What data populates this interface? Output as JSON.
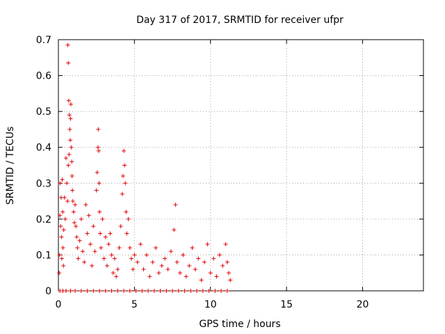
{
  "chart_data": {
    "type": "scatter",
    "title": "Day 317 of 2017, SRMTID for receiver ufpr",
    "xlabel": "GPS time / hours",
    "ylabel": "SRMTID / TECUs",
    "xlim": [
      0,
      24
    ],
    "ylim": [
      0,
      0.7
    ],
    "xticks": [
      0,
      5,
      10,
      15,
      20
    ],
    "yticks": [
      0,
      0.1,
      0.2,
      0.3,
      0.4,
      0.5,
      0.6,
      0.7
    ],
    "grid": true,
    "legend": "none",
    "marker": "plus",
    "color": "#e00000",
    "series": [
      {
        "name": "SRMTID",
        "x": [
          0.05,
          0.08,
          0.1,
          0.12,
          0.15,
          0.18,
          0.2,
          0.22,
          0.25,
          0.28,
          0.3,
          0.33,
          0.35,
          0.4,
          0.45,
          0.5,
          0.55,
          0.6,
          0.65,
          0.7,
          0.62,
          0.65,
          0.68,
          0.72,
          0.75,
          0.78,
          0.8,
          0.82,
          0.85,
          0.88,
          0.9,
          0.92,
          0.95,
          1.0,
          1.05,
          1.1,
          1.15,
          1.2,
          1.25,
          1.3,
          1.4,
          1.5,
          1.6,
          1.7,
          1.8,
          1.9,
          2.0,
          2.1,
          2.2,
          2.3,
          2.4,
          2.5,
          2.55,
          2.6,
          2.62,
          2.65,
          2.68,
          2.7,
          2.75,
          2.8,
          2.9,
          3.0,
          3.1,
          3.2,
          3.3,
          3.4,
          3.5,
          3.6,
          3.7,
          3.8,
          3.9,
          4.0,
          4.1,
          4.2,
          4.25,
          4.3,
          4.35,
          4.4,
          4.45,
          4.5,
          4.6,
          4.7,
          4.8,
          4.9,
          5.0,
          5.2,
          5.4,
          5.6,
          5.8,
          6.0,
          6.2,
          6.4,
          6.6,
          6.8,
          7.0,
          7.2,
          7.4,
          7.6,
          7.7,
          7.8,
          8.0,
          8.2,
          8.4,
          8.6,
          8.8,
          9.0,
          9.2,
          9.4,
          9.6,
          9.8,
          10.0,
          10.2,
          10.4,
          10.6,
          10.8,
          11.0,
          11.1,
          11.2,
          11.3,
          0.1,
          0.3,
          0.5,
          0.8,
          1.1,
          1.5,
          1.9,
          2.3,
          2.7,
          3.1,
          3.5,
          3.9,
          4.3,
          4.7,
          5.1,
          5.5,
          5.9,
          6.3,
          6.7,
          7.1,
          7.5,
          7.9,
          8.3,
          8.7,
          9.1,
          9.5,
          9.9,
          10.3,
          10.7,
          11.1
        ],
        "y": [
          0.05,
          0.1,
          0.21,
          0.3,
          0.18,
          0.26,
          0.15,
          0.09,
          0.31,
          0.22,
          0.12,
          0.07,
          0.17,
          0.26,
          0.2,
          0.37,
          0.3,
          0.25,
          0.35,
          0.38,
          0.685,
          0.635,
          0.53,
          0.49,
          0.45,
          0.42,
          0.48,
          0.52,
          0.4,
          0.36,
          0.32,
          0.28,
          0.25,
          0.22,
          0.19,
          0.24,
          0.18,
          0.15,
          0.12,
          0.09,
          0.14,
          0.2,
          0.11,
          0.08,
          0.24,
          0.16,
          0.21,
          0.13,
          0.07,
          0.18,
          0.11,
          0.28,
          0.33,
          0.4,
          0.45,
          0.39,
          0.3,
          0.22,
          0.16,
          0.12,
          0.2,
          0.09,
          0.15,
          0.07,
          0.13,
          0.16,
          0.1,
          0.05,
          0.09,
          0.04,
          0.06,
          0.12,
          0.18,
          0.27,
          0.32,
          0.39,
          0.35,
          0.3,
          0.22,
          0.16,
          0.2,
          0.12,
          0.09,
          0.06,
          0.1,
          0.08,
          0.13,
          0.06,
          0.1,
          0.04,
          0.08,
          0.12,
          0.05,
          0.07,
          0.09,
          0.06,
          0.11,
          0.17,
          0.24,
          0.08,
          0.05,
          0.1,
          0.04,
          0.07,
          0.12,
          0.06,
          0.09,
          0.03,
          0.08,
          0.13,
          0.05,
          0.09,
          0.04,
          0.1,
          0.07,
          0.13,
          0.08,
          0.05,
          0.03,
          0.0,
          0.0,
          0.0,
          0.0,
          0.0,
          0.0,
          0.0,
          0.0,
          0.0,
          0.0,
          0.0,
          0.0,
          0.0,
          0.0,
          0.0,
          0.0,
          0.0,
          0.0,
          0.0,
          0.0,
          0.0,
          0.0,
          0.0,
          0.0,
          0.0,
          0.0,
          0.0,
          0.0,
          0.0,
          0.0
        ]
      }
    ]
  }
}
